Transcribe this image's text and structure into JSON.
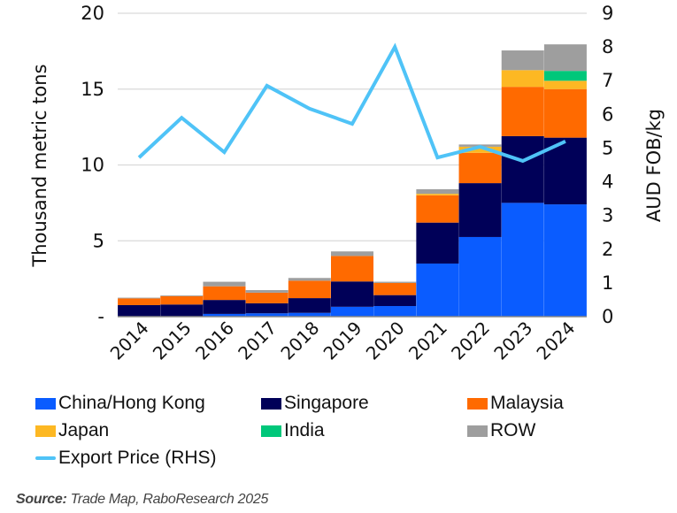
{
  "chart_data": {
    "type": "bar",
    "stacked": true,
    "categories": [
      "2014",
      "2015",
      "2016",
      "2017",
      "2018",
      "2019",
      "2020",
      "2021",
      "2022",
      "2023",
      "2024"
    ],
    "series": [
      {
        "name": "China/Hong Kong",
        "color": "#0a5cff",
        "values": [
          0.02,
          0.03,
          0.18,
          0.22,
          0.25,
          0.65,
          0.7,
          3.5,
          5.25,
          7.5,
          7.4
        ]
      },
      {
        "name": "Singapore",
        "color": "#000058",
        "values": [
          0.74,
          0.77,
          0.92,
          0.66,
          0.97,
          1.67,
          0.72,
          2.7,
          3.55,
          4.4,
          4.4
        ]
      },
      {
        "name": "Malaysia",
        "color": "#ff6a00",
        "values": [
          0.44,
          0.55,
          0.9,
          0.7,
          1.15,
          1.68,
          0.8,
          1.8,
          2.0,
          3.25,
          3.2
        ]
      },
      {
        "name": "Japan",
        "color": "#fdb823",
        "values": [
          0,
          0,
          0,
          0,
          0,
          0,
          0,
          0.1,
          0.4,
          1.1,
          0.55
        ]
      },
      {
        "name": "India",
        "color": "#00c77a",
        "values": [
          0,
          0,
          0,
          0,
          0,
          0,
          0,
          0,
          0,
          0,
          0.65
        ]
      },
      {
        "name": "ROW",
        "color": "#9e9e9e",
        "values": [
          0.05,
          0.05,
          0.3,
          0.17,
          0.18,
          0.3,
          0.08,
          0.3,
          0.15,
          1.3,
          1.75
        ]
      }
    ],
    "line_series": {
      "name": "Export Price (RHS)",
      "color": "#4fc3f7",
      "axis": "right",
      "values": [
        4.72,
        5.9,
        4.88,
        6.85,
        6.17,
        5.72,
        8.0,
        4.72,
        5.04,
        4.62,
        5.2
      ]
    },
    "ylabel": "Thousand metric tons",
    "ylim": [
      0,
      20
    ],
    "yticks": [
      0,
      5,
      10,
      15,
      20
    ],
    "ytick_labels": [
      "-",
      "5",
      "10",
      "15",
      "20"
    ],
    "y2label": "AUD FOB/kg",
    "y2lim": [
      0,
      9
    ],
    "y2ticks": [
      0,
      1,
      2,
      3,
      4,
      5,
      6,
      7,
      8,
      9
    ],
    "grid": true,
    "legend_position": "bottom",
    "title": ""
  },
  "legend": {
    "items": [
      {
        "label": "China/Hong Kong",
        "color": "#0a5cff",
        "kind": "box"
      },
      {
        "label": "Singapore",
        "color": "#000058",
        "kind": "box"
      },
      {
        "label": "Malaysia",
        "color": "#ff6a00",
        "kind": "box"
      },
      {
        "label": "Japan",
        "color": "#fdb823",
        "kind": "box"
      },
      {
        "label": "India",
        "color": "#00c77a",
        "kind": "box"
      },
      {
        "label": "ROW",
        "color": "#9e9e9e",
        "kind": "box"
      },
      {
        "label": "Export Price (RHS)",
        "color": "#4fc3f7",
        "kind": "line"
      }
    ]
  },
  "source": {
    "prefix": "Source:",
    "text": " Trade Map, RaboResearch 2025"
  }
}
